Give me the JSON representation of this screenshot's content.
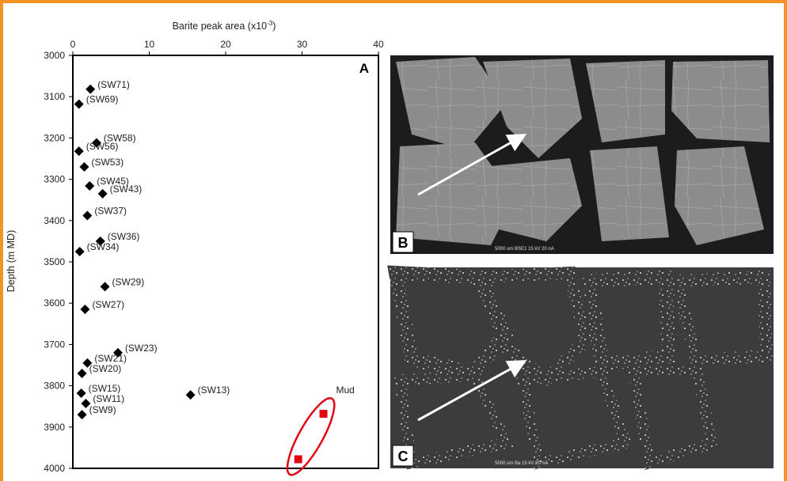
{
  "chart_data": {
    "type": "scatter",
    "panel_label": "A",
    "xlabel": "Barite peak area (x10",
    "xlabel_sup": "-3",
    "xlabel_close": ")",
    "ylabel": "Depth (m MD)",
    "xlim": [
      0,
      40
    ],
    "ylim": [
      3000,
      4000
    ],
    "y_inverted": true,
    "x_axis_position": "top",
    "xticks": [
      "0",
      "10",
      "20",
      "30",
      "40"
    ],
    "yticks": [
      "3000",
      "3100",
      "3200",
      "3300",
      "3400",
      "3500",
      "3600",
      "3700",
      "3800",
      "3900",
      "4000"
    ],
    "sidewall_cores": [
      {
        "label": "(SW71)",
        "x": 2.3,
        "y": 3082
      },
      {
        "label": "(SW69)",
        "x": 0.8,
        "y": 3118
      },
      {
        "label": "(SW58)",
        "x": 3.1,
        "y": 3212
      },
      {
        "label": "(SW56)",
        "x": 0.8,
        "y": 3232
      },
      {
        "label": "(SW53)",
        "x": 1.5,
        "y": 3270
      },
      {
        "label": "(SW45)",
        "x": 2.2,
        "y": 3316
      },
      {
        "label": "(SW43)",
        "x": 3.9,
        "y": 3335
      },
      {
        "label": "(SW37)",
        "x": 1.9,
        "y": 3388
      },
      {
        "label": "(SW36)",
        "x": 3.6,
        "y": 3450
      },
      {
        "label": "(SW34)",
        "x": 0.9,
        "y": 3475
      },
      {
        "label": "(SW29)",
        "x": 4.2,
        "y": 3560
      },
      {
        "label": "(SW27)",
        "x": 1.6,
        "y": 3615
      },
      {
        "label": "(SW23)",
        "x": 5.9,
        "y": 3720
      },
      {
        "label": "(SW21)",
        "x": 1.9,
        "y": 3745
      },
      {
        "label": "(SW20)",
        "x": 1.2,
        "y": 3770
      },
      {
        "label": "(SW15)",
        "x": 1.1,
        "y": 3818
      },
      {
        "label": "(SW13)",
        "x": 15.4,
        "y": 3822
      },
      {
        "label": "(SW11)",
        "x": 1.7,
        "y": 3843
      },
      {
        "label": "(SW9)",
        "x": 1.2,
        "y": 3870
      }
    ],
    "mud": {
      "label": "Mud",
      "points": [
        {
          "x": 32.8,
          "y": 3868
        },
        {
          "x": 29.5,
          "y": 3978
        }
      ]
    },
    "colors": {
      "sidewall": "#000000",
      "mud": "#e30613",
      "frame": "#f39325"
    }
  },
  "images": [
    {
      "label": "B",
      "scale_text": "5000 um   BSE1   15 kV   20 nA",
      "description_icon": "bse-image"
    },
    {
      "label": "C",
      "scale_text": "5000 um   Ba   15 kV   20 nA",
      "description_icon": "ba-map-image"
    }
  ]
}
